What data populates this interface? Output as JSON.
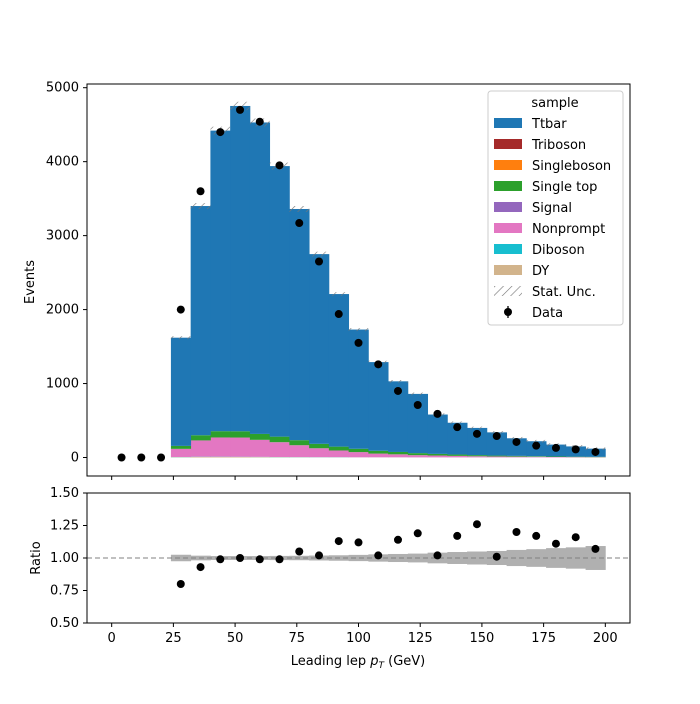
{
  "chart_data": [
    {
      "type": "bar",
      "subtype": "stacked-histogram",
      "title": "",
      "xlabel": "",
      "ylabel": "Events",
      "xlim": [
        -10,
        210
      ],
      "ylim": [
        -250,
        5050
      ],
      "yticks": [
        0,
        1000,
        2000,
        3000,
        4000,
        5000
      ],
      "xticks": [
        0,
        25,
        50,
        75,
        100,
        125,
        150,
        175,
        200
      ],
      "bin_edges": [
        0,
        8,
        16,
        24,
        32,
        40,
        48,
        56,
        64,
        72,
        80,
        88,
        96,
        104,
        112,
        120,
        128,
        136,
        144,
        152,
        160,
        168,
        176,
        184,
        192,
        200
      ],
      "series": [
        {
          "name": "DY",
          "color": "#d2b48c",
          "values": [
            0,
            0,
            0,
            5,
            8,
            8,
            7,
            6,
            5,
            4,
            3,
            3,
            2,
            2,
            2,
            1,
            1,
            1,
            1,
            1,
            1,
            1,
            1,
            0,
            0
          ]
        },
        {
          "name": "Diboson",
          "color": "#17becf",
          "values": [
            0,
            0,
            0,
            2,
            3,
            3,
            3,
            3,
            2,
            2,
            2,
            2,
            1,
            1,
            1,
            1,
            1,
            1,
            1,
            1,
            1,
            1,
            0,
            0,
            0
          ]
        },
        {
          "name": "Nonprompt",
          "color": "#e377c2",
          "values": [
            0,
            0,
            0,
            110,
            220,
            260,
            260,
            230,
            200,
            160,
            120,
            90,
            70,
            50,
            40,
            30,
            25,
            20,
            15,
            12,
            10,
            8,
            6,
            5,
            4
          ]
        },
        {
          "name": "Signal",
          "color": "#9467bd",
          "values": [
            0,
            0,
            0,
            0,
            0,
            0,
            0,
            0,
            0,
            0,
            0,
            0,
            0,
            0,
            0,
            0,
            0,
            0,
            0,
            0,
            0,
            0,
            0,
            0,
            0
          ]
        },
        {
          "name": "Single top",
          "color": "#2ca02c",
          "values": [
            0,
            0,
            0,
            40,
            70,
            85,
            85,
            80,
            75,
            68,
            60,
            52,
            45,
            38,
            32,
            27,
            22,
            18,
            15,
            12,
            10,
            8,
            7,
            6,
            5
          ]
        },
        {
          "name": "Singleboson",
          "color": "#ff7f0e",
          "values": [
            0,
            0,
            0,
            0,
            0,
            0,
            0,
            0,
            0,
            0,
            0,
            0,
            0,
            0,
            0,
            0,
            0,
            0,
            0,
            0,
            0,
            0,
            0,
            0,
            0
          ]
        },
        {
          "name": "Triboson",
          "color": "#a52a2a",
          "values": [
            0,
            0,
            0,
            0,
            0,
            0,
            0,
            0,
            0,
            0,
            0,
            0,
            0,
            0,
            0,
            0,
            0,
            0,
            0,
            0,
            0,
            0,
            0,
            0,
            0
          ]
        },
        {
          "name": "Ttbar",
          "color": "#1f77b4",
          "values": [
            0,
            0,
            0,
            1463,
            3099,
            4064,
            4398,
            4211,
            3658,
            3126,
            2565,
            2063,
            1612,
            1199,
            955,
            801,
            532,
            430,
            368,
            314,
            238,
            202,
            161,
            139,
            111
          ]
        }
      ],
      "totals": [
        0,
        0,
        0,
        1620,
        3400,
        4420,
        4753,
        4530,
        3940,
        3360,
        2750,
        2210,
        1730,
        1290,
        1030,
        860,
        580,
        470,
        400,
        340,
        260,
        220,
        175,
        150,
        120
      ],
      "data_points": {
        "name": "Data",
        "x": [
          4,
          12,
          20,
          28,
          36,
          44,
          52,
          60,
          68,
          76,
          84,
          92,
          100,
          108,
          116,
          124,
          132,
          140,
          148,
          156,
          164,
          172,
          180,
          188,
          196
        ],
        "y": [
          0,
          0,
          0,
          2000,
          3600,
          4400,
          4700,
          4540,
          3950,
          3170,
          2650,
          1940,
          1550,
          1260,
          900,
          710,
          590,
          410,
          320,
          290,
          210,
          160,
          130,
          110,
          75
        ]
      },
      "legend": {
        "title": "sample",
        "position": "top-right",
        "entries": [
          "Ttbar",
          "Triboson",
          "Singleboson",
          "Single top",
          "Signal",
          "Nonprompt",
          "Diboson",
          "DY",
          "Stat. Unc.",
          "Data"
        ]
      },
      "grid": false
    },
    {
      "type": "scatter",
      "subtype": "ratio",
      "title": "",
      "xlabel": "Leading lep p_T (GeV)",
      "ylabel": "Ratio",
      "xlim": [
        -10,
        210
      ],
      "ylim": [
        0.5,
        1.5
      ],
      "yticks": [
        0.5,
        0.75,
        1.0,
        1.25,
        1.5
      ],
      "ytick_labels": [
        "0.50",
        "0.75",
        "1.00",
        "1.25",
        "1.50"
      ],
      "xticks": [
        0,
        25,
        50,
        75,
        100,
        125,
        150,
        175,
        200
      ],
      "reference_line": 1.0,
      "ratio_points": {
        "x": [
          28,
          36,
          44,
          52,
          60,
          68,
          76,
          84,
          92,
          100,
          108,
          116,
          124,
          132,
          140,
          148,
          156,
          164,
          172,
          180,
          188,
          196
        ],
        "y": [
          0.8,
          0.93,
          0.99,
          1.0,
          0.99,
          0.99,
          1.05,
          1.02,
          1.13,
          1.12,
          1.02,
          1.14,
          1.19,
          1.02,
          1.17,
          1.26,
          1.01,
          1.2,
          1.17,
          1.11,
          1.16,
          1.07
        ]
      },
      "stat_unc_band": {
        "bin_edges": [
          24,
          32,
          40,
          48,
          56,
          64,
          72,
          80,
          88,
          96,
          104,
          112,
          120,
          128,
          136,
          144,
          152,
          160,
          168,
          176,
          184,
          192,
          200
        ],
        "half_width": [
          0.025,
          0.018,
          0.015,
          0.015,
          0.015,
          0.016,
          0.017,
          0.019,
          0.021,
          0.024,
          0.028,
          0.031,
          0.034,
          0.041,
          0.046,
          0.05,
          0.054,
          0.062,
          0.068,
          0.076,
          0.082,
          0.092
        ]
      },
      "grid": false
    }
  ]
}
